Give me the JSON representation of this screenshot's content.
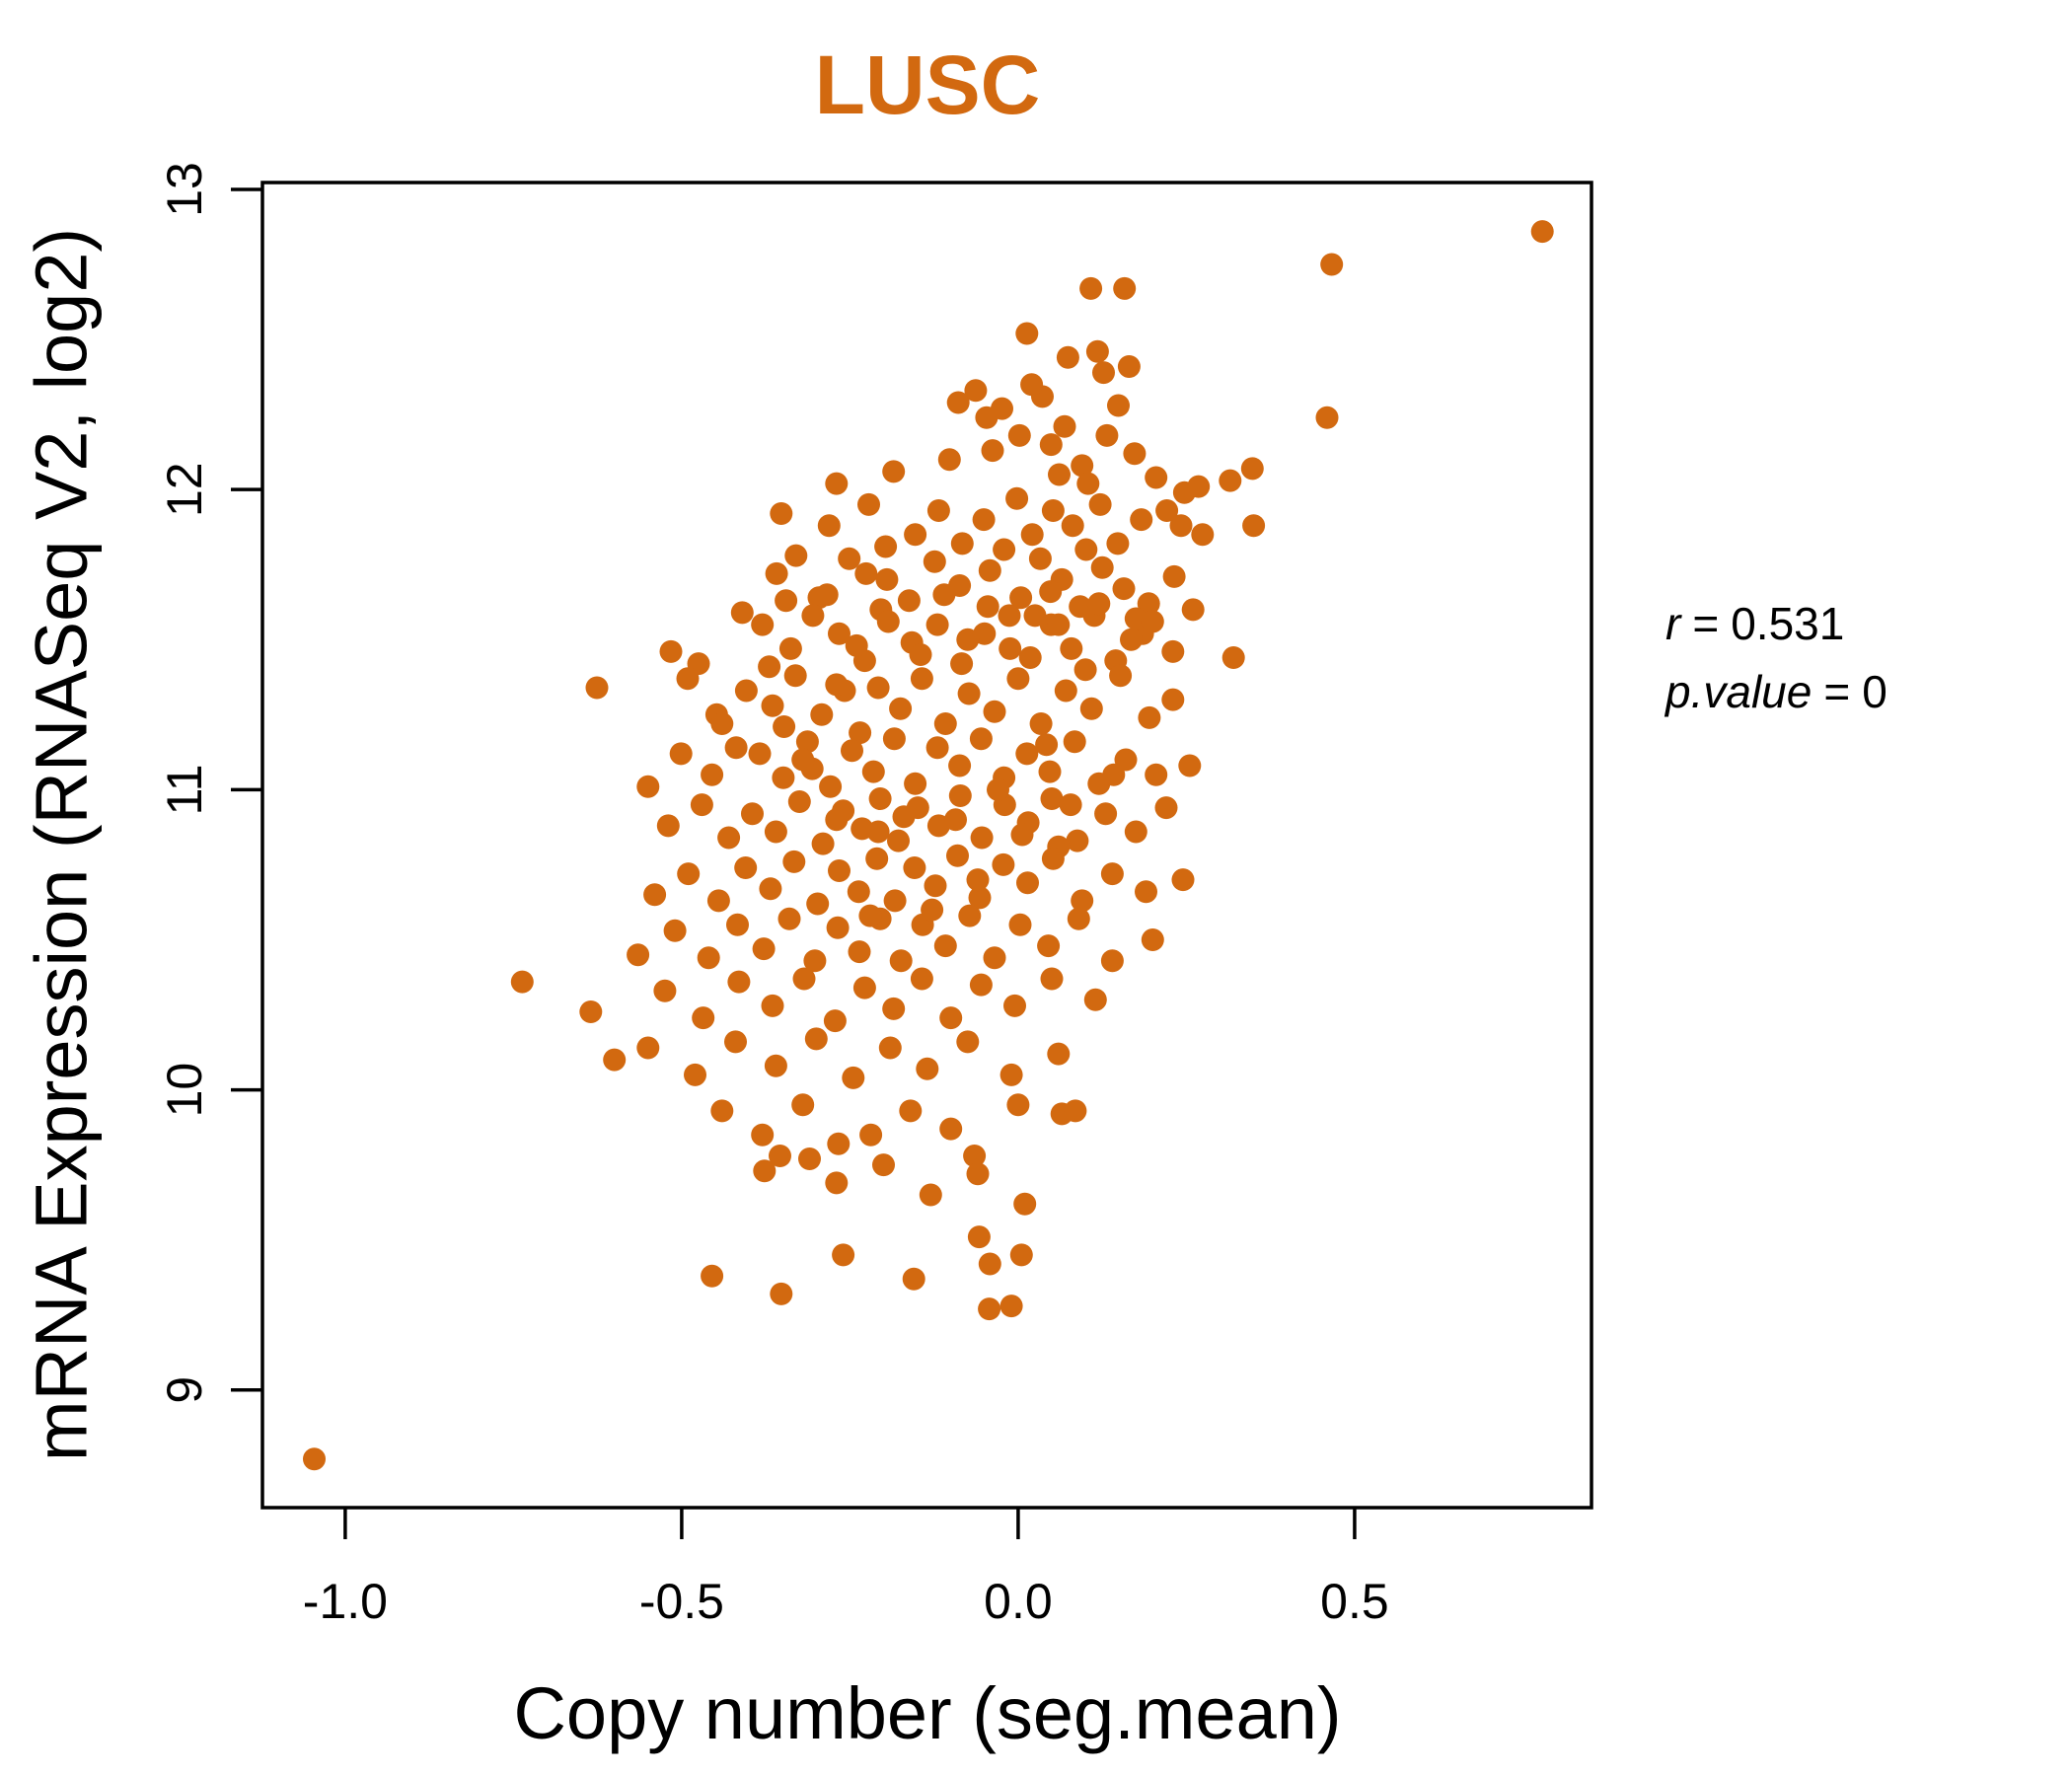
{
  "chart_data": {
    "type": "scatter",
    "title": "LUSC",
    "xlabel": "Copy number (seg.mean)",
    "ylabel": "mRNA Expression (RNASeq V2, log2)",
    "xlim": [
      -1.123,
      0.852
    ],
    "ylim": [
      8.608,
      13.023
    ],
    "x_ticks": [
      {
        "value": -1.0,
        "label": "-1.0"
      },
      {
        "value": -0.5,
        "label": "-0.5"
      },
      {
        "value": 0.0,
        "label": "0.0"
      },
      {
        "value": 0.5,
        "label": "0.5"
      }
    ],
    "y_ticks": [
      {
        "value": 9,
        "label": "9"
      },
      {
        "value": 10,
        "label": "10"
      },
      {
        "value": 11,
        "label": "11"
      },
      {
        "value": 12,
        "label": "12"
      },
      {
        "value": 13,
        "label": "13"
      }
    ],
    "grid": false,
    "legend": "none",
    "point_color": "#D26910",
    "title_color": "#D26910",
    "axis_color": "#000000",
    "points": [
      [
        0.779,
        12.86
      ],
      [
        0.466,
        12.75
      ],
      [
        0.108,
        12.67
      ],
      [
        0.158,
        12.67
      ],
      [
        0.013,
        12.52
      ],
      [
        0.074,
        12.44
      ],
      [
        0.118,
        12.46
      ],
      [
        -0.089,
        12.29
      ],
      [
        -0.063,
        12.33
      ],
      [
        -0.024,
        12.27
      ],
      [
        0.036,
        12.31
      ],
      [
        0.149,
        12.28
      ],
      [
        0.459,
        12.24
      ],
      [
        0.127,
        12.39
      ],
      [
        0.165,
        12.41
      ],
      [
        -0.047,
        12.24
      ],
      [
        0.069,
        12.21
      ],
      [
        0.02,
        12.35
      ],
      [
        -0.27,
        12.02
      ],
      [
        -0.185,
        12.06
      ],
      [
        -0.102,
        12.1
      ],
      [
        -0.038,
        12.13
      ],
      [
        0.002,
        12.18
      ],
      [
        0.049,
        12.15
      ],
      [
        0.095,
        12.08
      ],
      [
        0.132,
        12.18
      ],
      [
        0.173,
        12.12
      ],
      [
        0.205,
        12.04
      ],
      [
        0.247,
        11.99
      ],
      [
        0.268,
        12.01
      ],
      [
        0.315,
        12.03
      ],
      [
        0.348,
        12.07
      ],
      [
        0.061,
        12.05
      ],
      [
        0.104,
        12.02
      ],
      [
        -0.352,
        11.92
      ],
      [
        -0.281,
        11.88
      ],
      [
        -0.222,
        11.95
      ],
      [
        -0.153,
        11.85
      ],
      [
        -0.118,
        11.93
      ],
      [
        -0.083,
        11.82
      ],
      [
        -0.051,
        11.9
      ],
      [
        -0.002,
        11.97
      ],
      [
        0.021,
        11.85
      ],
      [
        0.052,
        11.93
      ],
      [
        0.081,
        11.88
      ],
      [
        0.122,
        11.95
      ],
      [
        0.148,
        11.82
      ],
      [
        0.183,
        11.9
      ],
      [
        0.242,
        11.88
      ],
      [
        0.274,
        11.85
      ],
      [
        0.35,
        11.88
      ],
      [
        0.221,
        11.93
      ],
      [
        -0.021,
        11.8
      ],
      [
        0.101,
        11.8
      ],
      [
        -0.197,
        11.81
      ],
      [
        -0.359,
        11.72
      ],
      [
        -0.33,
        11.78
      ],
      [
        -0.296,
        11.64
      ],
      [
        -0.251,
        11.77
      ],
      [
        -0.226,
        11.72
      ],
      [
        -0.204,
        11.6
      ],
      [
        -0.284,
        11.65
      ],
      [
        -0.162,
        11.63
      ],
      [
        -0.124,
        11.76
      ],
      [
        -0.087,
        11.68
      ],
      [
        -0.042,
        11.73
      ],
      [
        0.004,
        11.64
      ],
      [
        0.033,
        11.77
      ],
      [
        0.065,
        11.7
      ],
      [
        0.092,
        11.61
      ],
      [
        0.125,
        11.74
      ],
      [
        0.157,
        11.67
      ],
      [
        0.194,
        11.62
      ],
      [
        0.232,
        11.71
      ],
      [
        0.048,
        11.66
      ],
      [
        -0.516,
        11.46
      ],
      [
        -0.475,
        11.42
      ],
      [
        -0.38,
        11.55
      ],
      [
        -0.338,
        11.47
      ],
      [
        -0.305,
        11.58
      ],
      [
        -0.266,
        11.52
      ],
      [
        -0.228,
        11.43
      ],
      [
        -0.193,
        11.56
      ],
      [
        -0.158,
        11.49
      ],
      [
        -0.12,
        11.55
      ],
      [
        -0.084,
        11.42
      ],
      [
        -0.05,
        11.52
      ],
      [
        -0.013,
        11.58
      ],
      [
        0.018,
        11.44
      ],
      [
        0.049,
        11.55
      ],
      [
        0.079,
        11.47
      ],
      [
        0.113,
        11.58
      ],
      [
        0.145,
        11.43
      ],
      [
        0.185,
        11.52
      ],
      [
        0.23,
        11.46
      ],
      [
        0.32,
        11.44
      ],
      [
        0.175,
        11.57
      ],
      [
        -0.626,
        11.34
      ],
      [
        -0.491,
        11.37
      ],
      [
        -0.448,
        11.25
      ],
      [
        -0.404,
        11.33
      ],
      [
        -0.365,
        11.28
      ],
      [
        -0.331,
        11.38
      ],
      [
        -0.44,
        11.22
      ],
      [
        -0.292,
        11.25
      ],
      [
        -0.258,
        11.33
      ],
      [
        -0.235,
        11.19
      ],
      [
        -0.208,
        11.34
      ],
      [
        -0.27,
        11.35
      ],
      [
        -0.175,
        11.27
      ],
      [
        -0.143,
        11.37
      ],
      [
        -0.348,
        11.21
      ],
      [
        -0.108,
        11.22
      ],
      [
        -0.073,
        11.32
      ],
      [
        -0.035,
        11.26
      ],
      [
        0.0,
        11.37
      ],
      [
        0.034,
        11.22
      ],
      [
        0.071,
        11.33
      ],
      [
        0.109,
        11.27
      ],
      [
        0.152,
        11.38
      ],
      [
        0.195,
        11.24
      ],
      [
        -0.55,
        11.01
      ],
      [
        -0.501,
        11.12
      ],
      [
        -0.455,
        11.05
      ],
      [
        -0.419,
        11.14
      ],
      [
        -0.384,
        11.12
      ],
      [
        -0.349,
        11.04
      ],
      [
        -0.313,
        11.16
      ],
      [
        -0.306,
        11.07
      ],
      [
        -0.279,
        11.01
      ],
      [
        -0.247,
        11.13
      ],
      [
        -0.215,
        11.06
      ],
      [
        -0.184,
        11.17
      ],
      [
        -0.153,
        11.02
      ],
      [
        -0.12,
        11.14
      ],
      [
        -0.087,
        11.08
      ],
      [
        -0.055,
        11.17
      ],
      [
        -0.021,
        11.04
      ],
      [
        0.013,
        11.12
      ],
      [
        0.047,
        11.06
      ],
      [
        0.084,
        11.16
      ],
      [
        0.12,
        11.02
      ],
      [
        0.16,
        11.1
      ],
      [
        0.205,
        11.05
      ],
      [
        0.255,
        11.08
      ],
      [
        -0.52,
        10.88
      ],
      [
        -0.47,
        10.95
      ],
      [
        -0.43,
        10.84
      ],
      [
        -0.395,
        10.92
      ],
      [
        -0.36,
        10.86
      ],
      [
        -0.325,
        10.96
      ],
      [
        -0.29,
        10.82
      ],
      [
        -0.26,
        10.93
      ],
      [
        -0.232,
        10.87
      ],
      [
        -0.205,
        10.97
      ],
      [
        -0.178,
        10.83
      ],
      [
        -0.149,
        10.94
      ],
      [
        -0.118,
        10.88
      ],
      [
        -0.086,
        10.98
      ],
      [
        -0.054,
        10.84
      ],
      [
        -0.02,
        10.95
      ],
      [
        0.015,
        10.89
      ],
      [
        0.05,
        10.97
      ],
      [
        0.088,
        10.83
      ],
      [
        0.13,
        10.92
      ],
      [
        0.175,
        10.86
      ],
      [
        0.22,
        10.94
      ],
      [
        -0.208,
        10.86
      ],
      [
        0.06,
        10.81
      ],
      [
        -0.54,
        10.65
      ],
      [
        -0.49,
        10.72
      ],
      [
        -0.445,
        10.63
      ],
      [
        -0.405,
        10.74
      ],
      [
        -0.368,
        10.67
      ],
      [
        -0.333,
        10.76
      ],
      [
        -0.298,
        10.62
      ],
      [
        -0.266,
        10.73
      ],
      [
        -0.237,
        10.66
      ],
      [
        -0.21,
        10.77
      ],
      [
        -0.183,
        10.63
      ],
      [
        -0.154,
        10.74
      ],
      [
        -0.123,
        10.68
      ],
      [
        -0.09,
        10.78
      ],
      [
        -0.057,
        10.64
      ],
      [
        -0.022,
        10.75
      ],
      [
        0.014,
        10.69
      ],
      [
        0.052,
        10.77
      ],
      [
        0.095,
        10.63
      ],
      [
        0.14,
        10.72
      ],
      [
        0.19,
        10.66
      ],
      [
        0.245,
        10.7
      ],
      [
        -0.565,
        10.45
      ],
      [
        -0.51,
        10.53
      ],
      [
        -0.46,
        10.44
      ],
      [
        -0.417,
        10.55
      ],
      [
        -0.378,
        10.47
      ],
      [
        -0.34,
        10.57
      ],
      [
        -0.302,
        10.43
      ],
      [
        -0.268,
        10.54
      ],
      [
        -0.236,
        10.46
      ],
      [
        -0.205,
        10.57
      ],
      [
        -0.174,
        10.43
      ],
      [
        -0.142,
        10.55
      ],
      [
        -0.108,
        10.48
      ],
      [
        -0.072,
        10.58
      ],
      [
        -0.035,
        10.44
      ],
      [
        0.003,
        10.55
      ],
      [
        0.045,
        10.48
      ],
      [
        0.09,
        10.57
      ],
      [
        0.14,
        10.43
      ],
      [
        0.2,
        10.5
      ],
      [
        -0.737,
        10.36
      ],
      [
        -0.635,
        10.26
      ],
      [
        -0.525,
        10.33
      ],
      [
        -0.468,
        10.24
      ],
      [
        -0.415,
        10.36
      ],
      [
        -0.365,
        10.28
      ],
      [
        -0.318,
        10.37
      ],
      [
        -0.272,
        10.23
      ],
      [
        -0.228,
        10.34
      ],
      [
        -0.185,
        10.27
      ],
      [
        -0.143,
        10.37
      ],
      [
        -0.1,
        10.24
      ],
      [
        -0.055,
        10.35
      ],
      [
        -0.005,
        10.28
      ],
      [
        0.05,
        10.37
      ],
      [
        0.115,
        10.3
      ],
      [
        -0.6,
        10.1
      ],
      [
        -0.55,
        10.14
      ],
      [
        -0.48,
        10.05
      ],
      [
        -0.42,
        10.16
      ],
      [
        -0.36,
        10.08
      ],
      [
        -0.3,
        10.17
      ],
      [
        -0.245,
        10.04
      ],
      [
        -0.19,
        10.14
      ],
      [
        -0.135,
        10.07
      ],
      [
        -0.075,
        10.16
      ],
      [
        -0.01,
        10.05
      ],
      [
        0.06,
        10.12
      ],
      [
        -0.44,
        9.93
      ],
      [
        -0.38,
        9.85
      ],
      [
        -0.32,
        9.95
      ],
      [
        -0.267,
        9.82
      ],
      [
        -0.219,
        9.85
      ],
      [
        -0.16,
        9.93
      ],
      [
        -0.1,
        9.87
      ],
      [
        -0.065,
        9.78
      ],
      [
        0.0,
        9.95
      ],
      [
        0.065,
        9.92
      ],
      [
        0.085,
        9.93
      ],
      [
        -0.354,
        9.78
      ],
      [
        -0.377,
        9.73
      ],
      [
        -0.27,
        9.69
      ],
      [
        -0.2,
        9.75
      ],
      [
        -0.13,
        9.65
      ],
      [
        -0.06,
        9.72
      ],
      [
        0.01,
        9.62
      ],
      [
        -0.31,
        9.77
      ],
      [
        -0.455,
        9.38
      ],
      [
        -0.352,
        9.32
      ],
      [
        -0.26,
        9.45
      ],
      [
        -0.058,
        9.51
      ],
      [
        -0.042,
        9.42
      ],
      [
        -0.043,
        9.27
      ],
      [
        -0.155,
        9.37
      ],
      [
        0.005,
        9.45
      ],
      [
        -0.01,
        9.28
      ],
      [
        -1.046,
        8.77
      ],
      [
        -0.41,
        11.59
      ],
      [
        -0.37,
        11.41
      ],
      [
        -0.345,
        11.63
      ],
      [
        -0.32,
        11.1
      ],
      [
        -0.27,
        10.9
      ],
      [
        -0.24,
        11.48
      ],
      [
        -0.22,
        10.58
      ],
      [
        -0.195,
        11.7
      ],
      [
        -0.17,
        10.91
      ],
      [
        -0.145,
        11.45
      ],
      [
        -0.128,
        10.6
      ],
      [
        -0.11,
        11.65
      ],
      [
        -0.093,
        10.9
      ],
      [
        -0.075,
        11.5
      ],
      [
        -0.06,
        10.7
      ],
      [
        -0.045,
        11.61
      ],
      [
        -0.03,
        11.0
      ],
      [
        -0.012,
        11.47
      ],
      [
        0.006,
        10.85
      ],
      [
        0.025,
        11.58
      ],
      [
        0.042,
        11.15
      ],
      [
        0.06,
        11.55
      ],
      [
        0.078,
        10.95
      ],
      [
        0.1,
        11.4
      ],
      [
        0.12,
        11.62
      ],
      [
        0.142,
        11.05
      ],
      [
        0.168,
        11.5
      ],
      [
        0.2,
        11.56
      ],
      [
        0.23,
        11.3
      ],
      [
        0.26,
        11.6
      ]
    ]
  },
  "annotation": {
    "r_var": "r",
    "r_eq": "=",
    "r_val": "0.531",
    "p_var": "p.value",
    "p_eq": "=",
    "p_val": "0",
    "r": 0.531,
    "p_value": 0
  }
}
